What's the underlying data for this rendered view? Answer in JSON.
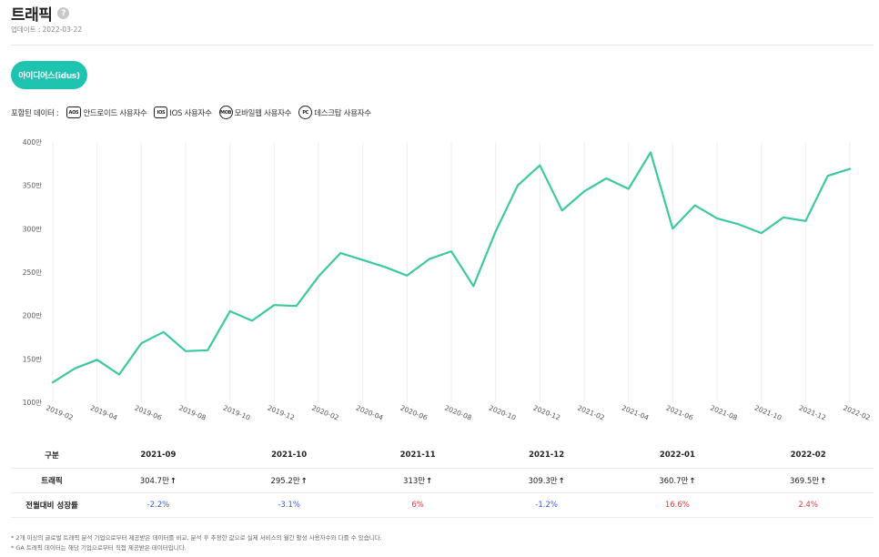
{
  "header": {
    "title": "트래픽",
    "help_glyph": "?",
    "updated_label": "업데이트 :",
    "updated_date": "2022-03-22"
  },
  "app_pill": {
    "label": "아이디어스(idus)"
  },
  "included_data": {
    "label": "포함된 데이터 :",
    "items": [
      {
        "badge": "AOS",
        "text": "안드로이드 사용자수"
      },
      {
        "badge": "IOS",
        "text": "IOS 사용자수"
      },
      {
        "badge": "MOB",
        "text": "모바일웹 사용자수"
      },
      {
        "badge": "PC",
        "text": "데스크탑 사용자수"
      }
    ]
  },
  "chart_data": {
    "type": "line",
    "color": "#3cc9a0",
    "grid": "vertical",
    "x": [
      "2019-02",
      "2019-03",
      "2019-04",
      "2019-05",
      "2019-06",
      "2019-07",
      "2019-08",
      "2019-09",
      "2019-10",
      "2019-11",
      "2019-12",
      "2020-01",
      "2020-02",
      "2020-03",
      "2020-04",
      "2020-05",
      "2020-06",
      "2020-07",
      "2020-08",
      "2020-09",
      "2020-10",
      "2020-11",
      "2020-12",
      "2021-01",
      "2021-02",
      "2021-03",
      "2021-04",
      "2021-05",
      "2021-06",
      "2021-07",
      "2021-08",
      "2021-09",
      "2021-10",
      "2021-11",
      "2021-12",
      "2022-01",
      "2022-02"
    ],
    "x_tick_labels": [
      "2019-02",
      "2019-04",
      "2019-06",
      "2019-08",
      "2019-10",
      "2019-12",
      "2020-02",
      "2020-04",
      "2020-06",
      "2020-08",
      "2020-10",
      "2020-12",
      "2021-02",
      "2021-04",
      "2021-06",
      "2021-08",
      "2021-10",
      "2021-12",
      "2022-02"
    ],
    "values": [
      123,
      139,
      149,
      132,
      168,
      181,
      159,
      160,
      205,
      194,
      212,
      211,
      245,
      272,
      264,
      256,
      246,
      265,
      274,
      234,
      297,
      350,
      373,
      321,
      343,
      358,
      346,
      388,
      300,
      327,
      312,
      305,
      295,
      313,
      309,
      361,
      369
    ],
    "y_unit": "만",
    "ylim": [
      100,
      400
    ],
    "y_ticks": [
      100,
      150,
      200,
      250,
      300,
      350,
      400
    ]
  },
  "stats_table": {
    "header_label": "구분",
    "columns": [
      "2021-09",
      "2021-10",
      "2021-11",
      "2021-12",
      "2022-01",
      "2022-02"
    ],
    "traffic_label": "트래픽",
    "traffic": [
      "304.7만",
      "295.2만",
      "313만",
      "309.3만",
      "360.7만",
      "369.5만"
    ],
    "arrow": "↑",
    "growth_label": "전월대비 성장률",
    "growth": [
      "-2.2%",
      "-3.1%",
      "6%",
      "-1.2%",
      "16.6%",
      "2.4%"
    ]
  },
  "notes": [
    "* 2개 이상의 글로벌 트래픽 분석 기업으로부터 제공받은 데이터를 비교, 분석 후 추정한 값으로 실제 서비스의 월간 활성 사용자수와 다를 수 있습니다.",
    "* GA 트래픽 데이터는 해당 기업으로부터 직접 제공받은 데이터입니다."
  ]
}
